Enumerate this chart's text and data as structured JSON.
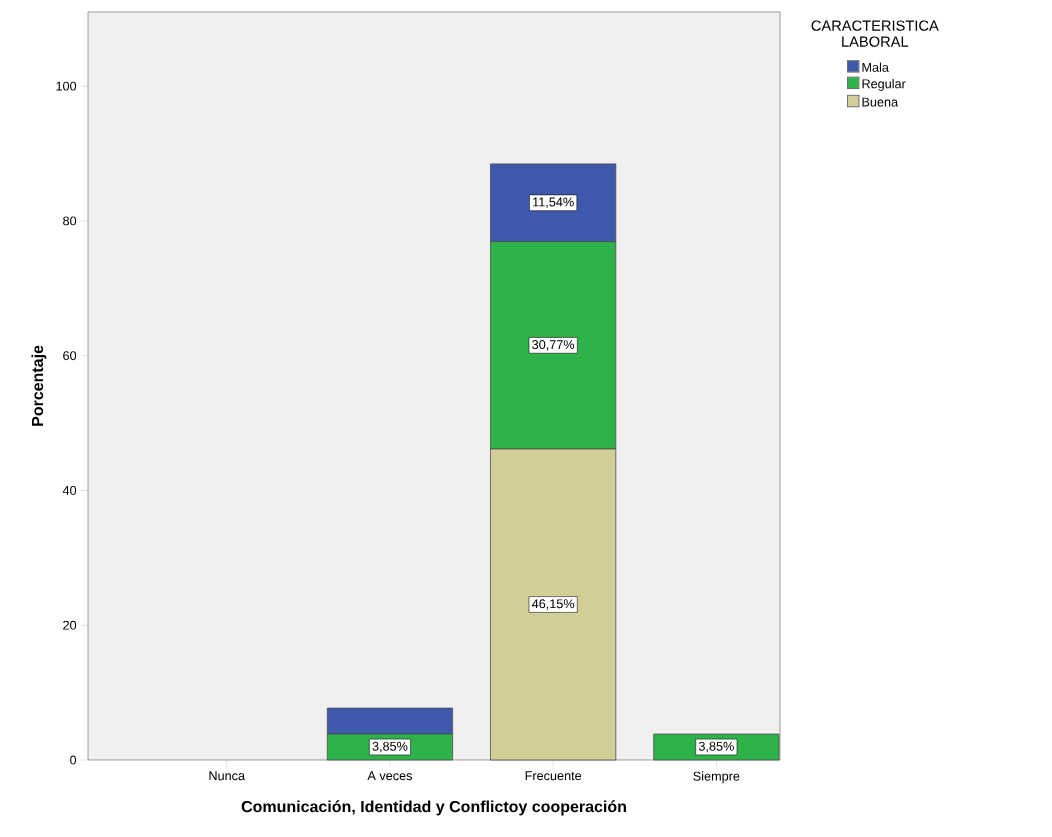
{
  "chart_data": {
    "type": "bar",
    "stacked": true,
    "xlabel": "Comunicación, Identidad y Conflictoy cooperación",
    "ylabel": "Porcentaje",
    "legend_title": "CARACTERISTICA LABORAL",
    "legend": "top right",
    "categories": [
      "Nunca",
      "A veces",
      "Frecuente",
      "Siempre"
    ],
    "ylim": [
      0,
      111
    ],
    "yticks": [
      0,
      20,
      40,
      60,
      80,
      100
    ],
    "series": [
      {
        "name": "Buena",
        "color": "#d3ce97",
        "values": [
          0,
          0,
          46.15,
          0
        ],
        "value_labels": [
          null,
          null,
          "46,15%",
          null
        ]
      },
      {
        "name": "Regular",
        "color": "#2db34a",
        "values": [
          0,
          3.85,
          30.77,
          3.85
        ],
        "value_labels": [
          null,
          "3,85%",
          "30,77%",
          "3,85%"
        ]
      },
      {
        "name": "Mala",
        "color": "#3e58ac",
        "values": [
          0,
          3.85,
          11.54,
          0
        ],
        "value_labels": [
          null,
          null,
          "11,54%",
          null
        ]
      }
    ]
  }
}
